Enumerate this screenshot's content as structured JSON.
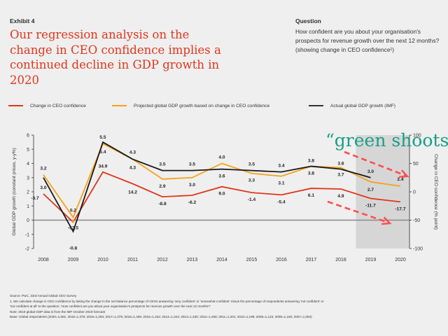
{
  "header": {
    "exhibit": "Exhibit 4",
    "headline": "Our regression analysis on the change in CEO confidence implies a continued decline in GDP growth in 2020",
    "question_title": "Question",
    "question_text": "How confident are you about your organisation's prospects for revenue growth over the next 12 months? (showing change in CEO confidence¹)"
  },
  "colors": {
    "ceo_confidence": "#e0361b",
    "projected_gdp": "#f5a31a",
    "actual_gdp": "#1a1a1a",
    "headline": "#e0361b",
    "annotation": "#1a9e86",
    "arrows": "#ff4d4d",
    "shade": "#d6d6d6"
  },
  "chart_data": {
    "type": "line",
    "title": "",
    "x": [
      "2008",
      "2009",
      "2010",
      "2011",
      "2012",
      "2013",
      "2014",
      "2015",
      "2016",
      "2017",
      "2018",
      "2019",
      "2020"
    ],
    "ylabel": "Global GDP growth (constant prices, y-y%)",
    "ylim": [
      -2,
      6
    ],
    "yticks": [
      6,
      5,
      4,
      3,
      2,
      1,
      0,
      -1,
      -2
    ],
    "y2label": "Change in CEO confidence (% point)",
    "y2lim": [
      -100,
      100
    ],
    "y2ticks": [
      100,
      50,
      0,
      -50,
      -100
    ],
    "series": [
      {
        "name": "Change in CEO confidence",
        "axis": "right",
        "color_key": "ceo_confidence",
        "values": [
          -3.7,
          -53.5,
          34.9,
          14.2,
          -8.8,
          -6.2,
          9.0,
          -1.4,
          -5.4,
          6.1,
          4.9,
          -11.7,
          -17.7
        ],
        "labels": [
          "-3.7",
          "-53.5",
          "34.9",
          "14.2",
          "-8.8",
          "-6.2",
          "9.0",
          "-1.4",
          "-5.4",
          "6.1",
          "4.9",
          "-11.7",
          "-17.7"
        ]
      },
      {
        "name": "Projected global GDP growth based on change in CEO confidence",
        "axis": "left",
        "color_key": "projected_gdp",
        "values": [
          3.2,
          0.2,
          5.4,
          4.3,
          2.9,
          3.0,
          4.0,
          3.3,
          3.1,
          3.8,
          3.7,
          2.7,
          2.4
        ],
        "labels": [
          "3.2",
          "0.2",
          "5.4",
          "4.3",
          "2.9",
          "3.0",
          "4.0",
          "3.3",
          "3.1",
          "3.8",
          "3.7",
          "2.7",
          "2.4"
        ]
      },
      {
        "name": "Actual global GDP growth (IMF)",
        "axis": "left",
        "color_key": "actual_gdp",
        "values": [
          3.0,
          -0.8,
          5.5,
          4.3,
          3.5,
          3.5,
          3.6,
          3.5,
          3.4,
          3.8,
          3.6,
          3.0,
          null
        ],
        "labels": [
          "3.0",
          "-0.8",
          "5.5",
          "4.3",
          "3.5",
          "3.5",
          "3.6",
          "3.5",
          "3.4",
          "3.8",
          "3.6",
          "3.0",
          ""
        ]
      }
    ],
    "shaded_region": [
      "2019",
      "2020"
    ],
    "annotations": [
      {
        "text": "“green shoots”?"
      }
    ],
    "grid": false,
    "legend": "top"
  },
  "footnotes": [
    "Source: PwC, 23rd Annual Global CEO Survey",
    "1. We calculate change in CEO confidence by taking the change in the net balance percentage of CEOs answering 'very confident' or 'somewhat confident' minus the percentage of respondents answering 'not confident' or",
    "'not confident at all' to the question: 'How confident are you about your organisation's prospects for revenue growth over the next 12 months?'",
    "Note: 2019 global GDP data is from the IMF October 2019 forecast",
    "Base: Global respondents (2020=1,581; 2019=1,378; 2018=1,293; 2017=1,379; 2016=1,409; 2015=1,322; 2014=1,344; 2013=1,330; 2012=1,258; 2011=1,201; 2010=1,198; 2009=1,124; 2008=1,150; 2007=1,084)"
  ]
}
